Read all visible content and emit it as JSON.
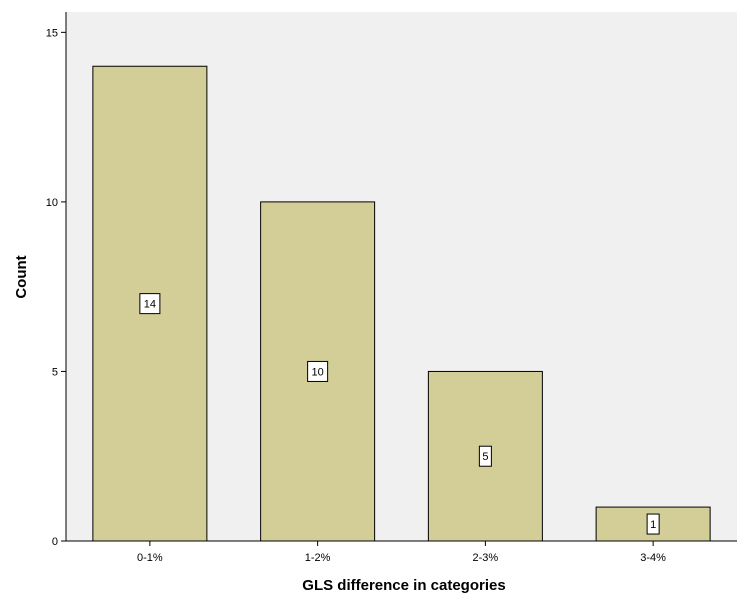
{
  "chart_data": {
    "type": "bar",
    "title": "",
    "xlabel": "GLS difference in categories",
    "ylabel": "Count",
    "categories": [
      "0-1%",
      "1-2%",
      "2-3%",
      "3-4%"
    ],
    "values": [
      14,
      10,
      5,
      1
    ],
    "data_labels": [
      "14",
      "10",
      "5",
      "1"
    ],
    "ylim": [
      0,
      15.6
    ],
    "yticks": [
      0,
      5,
      10,
      15
    ],
    "ytick_labels": [
      "0",
      "5",
      "10",
      "15"
    ],
    "grid": false,
    "legend": "none",
    "colors": {
      "plot_background": "#f0f0f0",
      "bar_fill": "#d3ce97",
      "bar_stroke": "#000000",
      "label_box": "#ffffff"
    }
  }
}
